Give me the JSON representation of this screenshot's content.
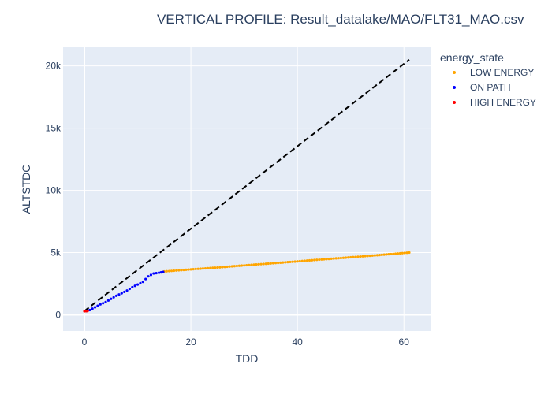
{
  "chart_data": {
    "type": "scatter",
    "title": "VERTICAL PROFILE: Result_datalake/MAO/FLT31_MAO.csv",
    "xlabel": "TDD",
    "ylabel": "ALTSTDC",
    "xlim": [
      -4,
      65
    ],
    "ylim": [
      -1300,
      21500
    ],
    "x_ticks": [
      0,
      20,
      40,
      60
    ],
    "y_ticks": [
      0,
      5000,
      10000,
      15000,
      20000
    ],
    "x_tick_labels": [
      "0",
      "20",
      "40",
      "60"
    ],
    "y_tick_labels": [
      "0",
      "5k",
      "10k",
      "15k",
      "20k"
    ],
    "grid": true,
    "plot_background": "#e5ecf6",
    "legend": {
      "title": "energy_state",
      "placement": "right"
    },
    "reference_line": {
      "style": "dashed",
      "color": "#000000",
      "x": [
        0,
        61
      ],
      "y": [
        300,
        20500
      ]
    },
    "series": [
      {
        "name": "LOW ENERGY",
        "color": "#ffa500",
        "x": [
          15,
          20,
          25,
          30,
          35,
          40,
          45,
          50,
          55,
          61
        ],
        "y": [
          3480,
          3650,
          3800,
          3970,
          4130,
          4290,
          4460,
          4620,
          4790,
          5000
        ]
      },
      {
        "name": "ON PATH",
        "color": "#0000ff",
        "x": [
          0.5,
          1,
          2,
          3,
          4,
          5,
          6,
          7,
          8,
          9,
          10,
          11,
          12,
          13,
          14,
          14.8
        ],
        "y": [
          320,
          380,
          600,
          840,
          1020,
          1280,
          1530,
          1730,
          1950,
          2220,
          2430,
          2650,
          3090,
          3320,
          3380,
          3440
        ]
      },
      {
        "name": "HIGH ENERGY",
        "color": "#ff0000",
        "x": [
          0,
          0.2,
          0.4,
          0.6
        ],
        "y": [
          280,
          300,
          290,
          310
        ]
      }
    ]
  }
}
